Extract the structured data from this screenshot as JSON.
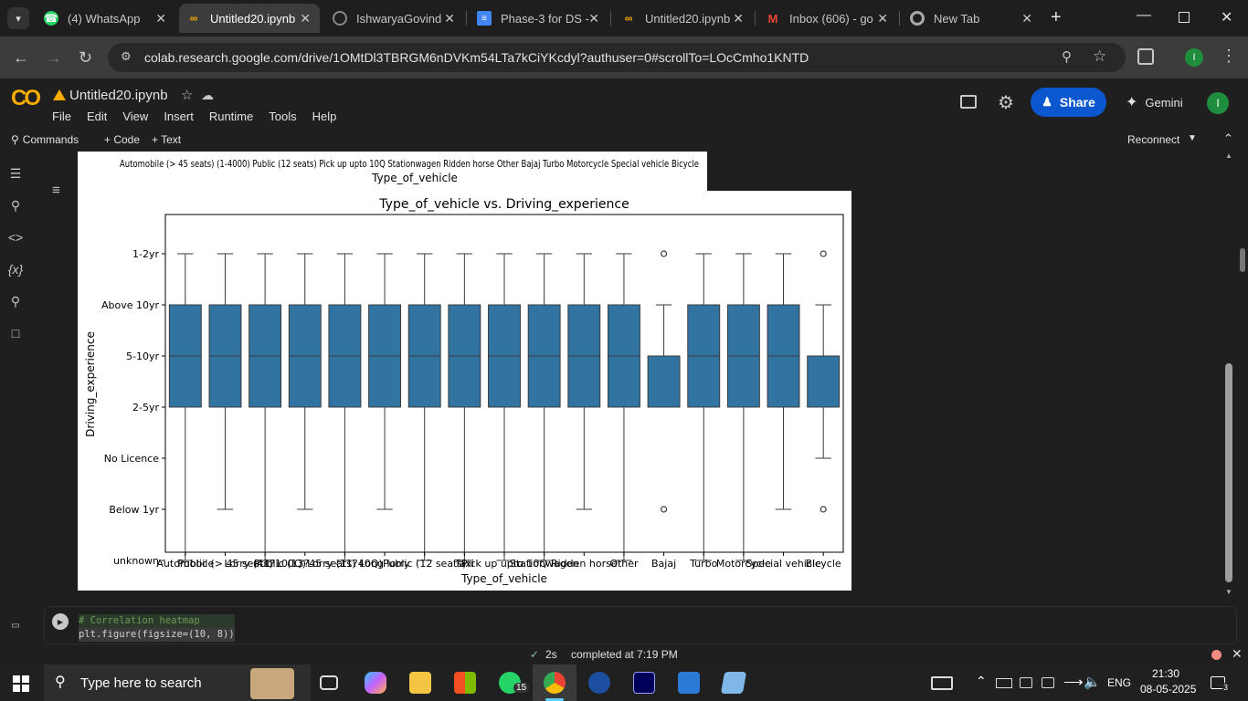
{
  "browser": {
    "tabs": [
      {
        "title": "(4) WhatsApp",
        "icon": "whatsapp-icon"
      },
      {
        "title": "Untitled20.ipynb",
        "icon": "colab-icon"
      },
      {
        "title": "IshwaryaGovind",
        "icon": "github-icon"
      },
      {
        "title": "Phase-3 for DS -",
        "icon": "docs-icon"
      },
      {
        "title": "Untitled20.ipynb",
        "icon": "colab-icon"
      },
      {
        "title": "Inbox (606) - go",
        "icon": "gmail-icon"
      },
      {
        "title": "New Tab",
        "icon": "chrome-icon"
      }
    ],
    "url": "colab.research.google.com/drive/1OMtDl3TBRGM6nDVKm54LTa7kCiYKcdyl?authuser=0#scrollTo=LOcCmho1KNTD",
    "profile_initial": "I"
  },
  "colab": {
    "logo": "CO",
    "notebook_title": "Untitled20.ipynb",
    "menu": [
      "File",
      "Edit",
      "View",
      "Insert",
      "Runtime",
      "Tools",
      "Help"
    ],
    "share_label": "Share",
    "gemini_label": "Gemini",
    "avatar_initial": "I",
    "commands_label": "Commands",
    "add_code_label": "+ Code",
    "add_text_label": "+ Text",
    "reconnect_label": "Reconnect"
  },
  "upper_plot": {
    "xlabel": "Type_of_vehicle",
    "tick_text": "Automobile (> 45 seats) (1-4000) Public (12 seats) Pick up upto 10Q Stationwagen Ridden horse Other Bajaj Turbo Motorcycle Special vehicle Bicycle",
    "tick_labels": [
      "Automobile",
      "Public (> 45 seats)",
      "Lorry (41?100Q)",
      "Public (13?45 seats)",
      "Lorry (11?40Q)",
      "Long lorry",
      "Public (12 seats)",
      "Taxi",
      "Pick up upto 10Q",
      "Stationwagen",
      "Ridden horse",
      "Other",
      "Bajaj",
      "Turbo",
      "Motorcycle",
      "Special vehicle",
      "Bicycle"
    ]
  },
  "chart_data": {
    "type": "box",
    "title": "Type_of_vehicle vs. Driving_experience",
    "xlabel": "Type_of_vehicle",
    "ylabel": "Driving_experience",
    "y_categories": [
      "1-2yr",
      "Above 10yr",
      "5-10yr",
      "2-5yr",
      "No Licence",
      "Below 1yr",
      "unknown"
    ],
    "color": "#3274a1",
    "categories": [
      "Automobile",
      "Public (> 45 seats)",
      "Lorry (41?100Q)",
      "Public (13?45 seats)",
      "Lorry (11?40Q)",
      "Long lorry",
      "Public (12 seats)",
      "Taxi",
      "Pick up upto 10Q",
      "Stationwagen",
      "Ridden horse",
      "Other",
      "Bajaj",
      "Turbo",
      "Motorcycle",
      "Special vehicle",
      "Bicycle"
    ],
    "tick_labels": [
      "Automobile",
      "Public (> 45 seats)",
      "Lorry (41?100Q)",
      "Public (13?45 seats)",
      "Lorry (11?40Q)",
      "Long lorry",
      "Public (12 seats)",
      "Taxi",
      "Pick up upto 10Q",
      "Stationwagen",
      "Ridden horse",
      "Other",
      "Bajaj",
      "Turbo",
      "Motorcycle",
      "Special vehicle",
      "Bicycle"
    ],
    "boxes": [
      {
        "wlo": "unknown",
        "q1": "2-5yr",
        "med": "5-10yr",
        "q3": "Above 10yr",
        "whi": "1-2yr",
        "outliers": []
      },
      {
        "wlo": "Below 1yr",
        "q1": "2-5yr",
        "med": "5-10yr",
        "q3": "Above 10yr",
        "whi": "1-2yr",
        "outliers": []
      },
      {
        "wlo": "unknown",
        "q1": "2-5yr",
        "med": "5-10yr",
        "q3": "Above 10yr",
        "whi": "1-2yr",
        "outliers": []
      },
      {
        "wlo": "Below 1yr",
        "q1": "2-5yr",
        "med": "5-10yr",
        "q3": "Above 10yr",
        "whi": "1-2yr",
        "outliers": []
      },
      {
        "wlo": "unknown",
        "q1": "2-5yr",
        "med": "5-10yr",
        "q3": "Above 10yr",
        "whi": "1-2yr",
        "outliers": []
      },
      {
        "wlo": "Below 1yr",
        "q1": "2-5yr",
        "med": "5-10yr",
        "q3": "Above 10yr",
        "whi": "1-2yr",
        "outliers": []
      },
      {
        "wlo": "unknown",
        "q1": "2-5yr",
        "med": "5-10yr",
        "q3": "Above 10yr",
        "whi": "1-2yr",
        "outliers": []
      },
      {
        "wlo": "unknown",
        "q1": "2-5yr",
        "med": "5-10yr",
        "q3": "Above 10yr",
        "whi": "1-2yr",
        "outliers": []
      },
      {
        "wlo": "unknown",
        "q1": "2-5yr",
        "med": "5-10yr",
        "q3": "Above 10yr",
        "whi": "1-2yr",
        "outliers": []
      },
      {
        "wlo": "unknown",
        "q1": "2-5yr",
        "med": "5-10yr",
        "q3": "Above 10yr",
        "whi": "1-2yr",
        "outliers": []
      },
      {
        "wlo": "Below 1yr",
        "q1": "2-5yr",
        "med": "5-10yr",
        "q3": "Above 10yr",
        "whi": "1-2yr",
        "outliers": []
      },
      {
        "wlo": "unknown",
        "q1": "2-5yr",
        "med": "5-10yr",
        "q3": "Above 10yr",
        "whi": "1-2yr",
        "outliers": []
      },
      {
        "wlo": "2-5yr",
        "q1": "2-5yr",
        "med": "5-10yr",
        "q3": "5-10yr",
        "whi": "Above 10yr",
        "outliers": [
          "1-2yr",
          "Below 1yr"
        ]
      },
      {
        "wlo": "unknown",
        "q1": "2-5yr",
        "med": "5-10yr",
        "q3": "Above 10yr",
        "whi": "1-2yr",
        "outliers": []
      },
      {
        "wlo": "unknown",
        "q1": "2-5yr",
        "med": "5-10yr",
        "q3": "Above 10yr",
        "whi": "1-2yr",
        "outliers": []
      },
      {
        "wlo": "Below 1yr",
        "q1": "2-5yr",
        "med": "5-10yr",
        "q3": "Above 10yr",
        "whi": "1-2yr",
        "outliers": []
      },
      {
        "wlo": "No Licence",
        "q1": "2-5yr",
        "med": "5-10yr",
        "q3": "5-10yr",
        "whi": "Above 10yr",
        "outliers": [
          "1-2yr",
          "Below 1yr"
        ]
      }
    ]
  },
  "code_cell": {
    "line1": "# Correlation heatmap",
    "line2": "plt.figure(figsize=(10, 8))"
  },
  "status": {
    "duration": "2s",
    "message": "completed at 7:19 PM"
  },
  "taskbar": {
    "search_placeholder": "Type here to search",
    "whatsapp_badge": "15",
    "language": "ENG",
    "time": "21:30",
    "date": "08-05-2025",
    "notification_count": "3"
  }
}
